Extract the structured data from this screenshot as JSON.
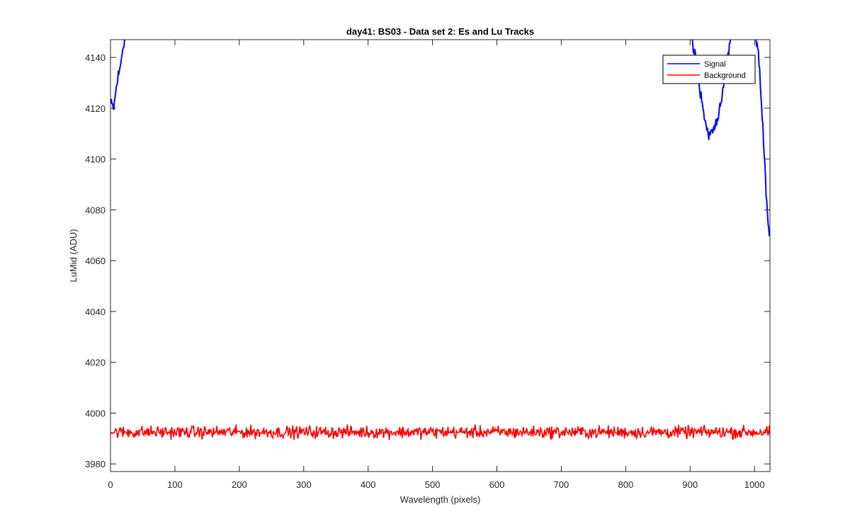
{
  "chart_data": {
    "type": "line",
    "title": "day41: BS03 - Data set 2: Es and Lu Tracks",
    "xlabel": "Wavelength (pixels)",
    "ylabel": "LuMid (ADU)",
    "xlim": [
      0,
      1024
    ],
    "ylim": [
      3977,
      4147
    ],
    "xticks": [
      0,
      100,
      200,
      300,
      400,
      500,
      600,
      700,
      800,
      900,
      1000
    ],
    "yticks": [
      3980,
      4000,
      4020,
      4040,
      4060,
      4080,
      4100,
      4120,
      4140
    ],
    "grid": false,
    "legend_position": "top-right",
    "series": [
      {
        "name": "Signal",
        "color": "#0000ff",
        "noise": 2.5,
        "points": [
          [
            0,
            4122
          ],
          [
            5,
            4120
          ],
          [
            10,
            4130
          ],
          [
            15,
            4136
          ],
          [
            18,
            4142
          ],
          [
            22,
            4148
          ],
          [
            26,
            4156
          ],
          [
            880,
            4170
          ],
          [
            890,
            4160
          ],
          [
            900,
            4150
          ],
          [
            910,
            4137
          ],
          [
            915,
            4127
          ],
          [
            920,
            4119
          ],
          [
            925,
            4112
          ],
          [
            930,
            4109
          ],
          [
            935,
            4111
          ],
          [
            940,
            4114
          ],
          [
            945,
            4119
          ],
          [
            950,
            4126
          ],
          [
            955,
            4135
          ],
          [
            960,
            4143
          ],
          [
            965,
            4150
          ],
          [
            975,
            4160
          ],
          [
            990,
            4158
          ],
          [
            1000,
            4151
          ],
          [
            1006,
            4142
          ],
          [
            1010,
            4125
          ],
          [
            1014,
            4108
          ],
          [
            1018,
            4088
          ],
          [
            1021,
            4076
          ],
          [
            1023,
            4071
          ]
        ]
      },
      {
        "name": "Background",
        "color": "#ff0000",
        "mean": 3992.5,
        "noise": 1.2,
        "x_range": [
          0,
          1024
        ]
      }
    ]
  }
}
